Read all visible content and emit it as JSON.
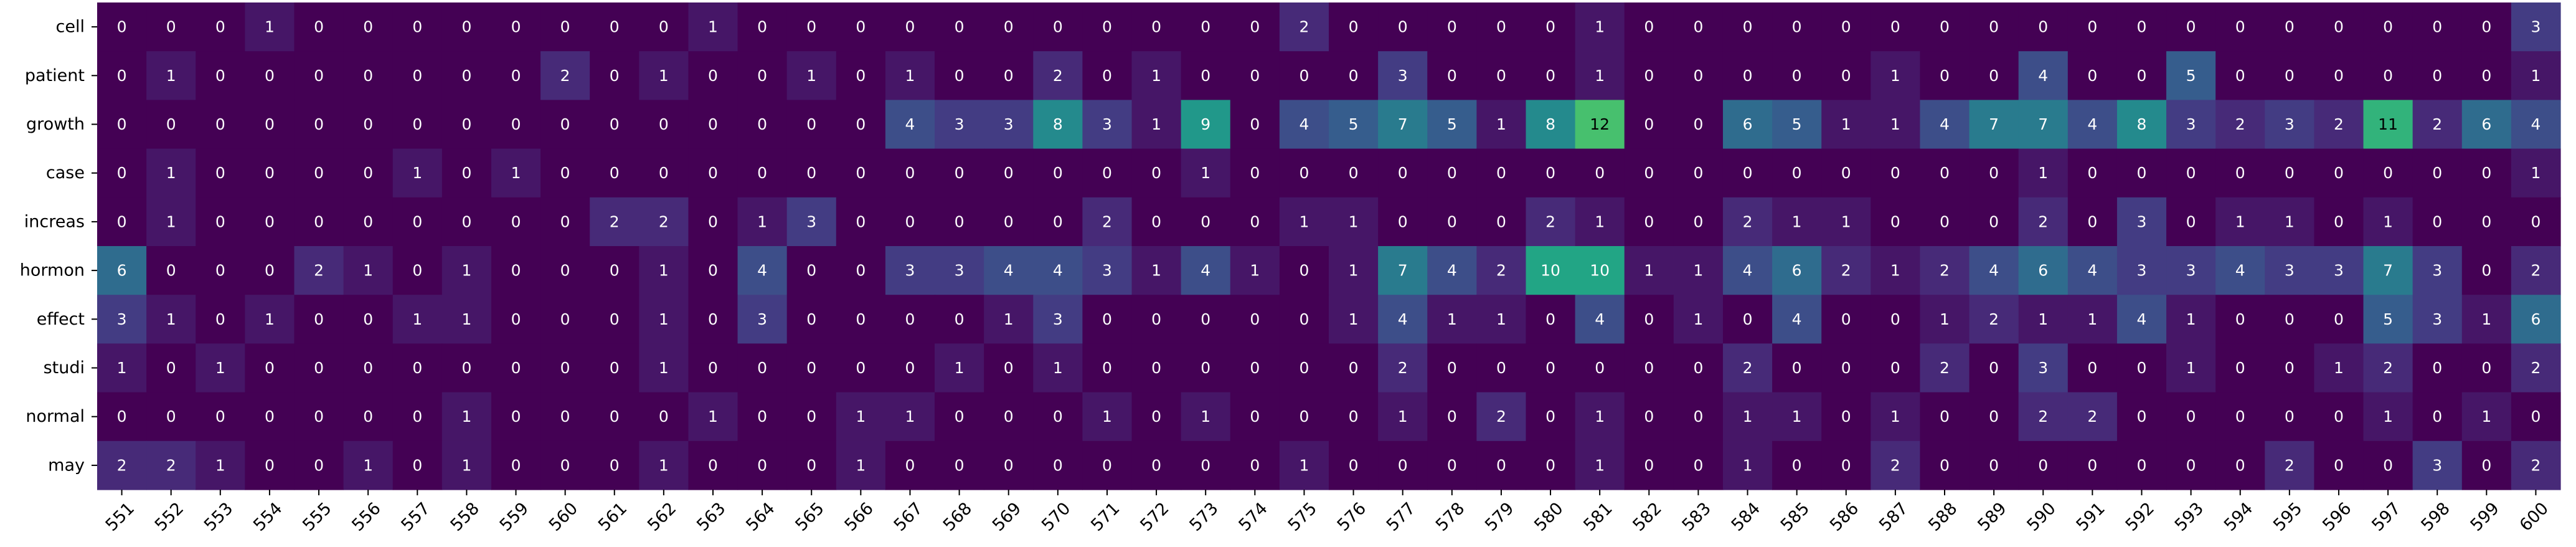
{
  "chart_data": {
    "type": "heatmap",
    "title": "",
    "xlabel": "",
    "ylabel": "",
    "colormap": "viridis",
    "vmin": 0,
    "vmax": 17,
    "grid": false,
    "rows": [
      "cell",
      "patient",
      "growth",
      "case",
      "increas",
      "hormon",
      "effect",
      "studi",
      "normal",
      "may"
    ],
    "columns": [
      "551",
      "552",
      "553",
      "554",
      "555",
      "556",
      "557",
      "558",
      "559",
      "560",
      "561",
      "562",
      "563",
      "564",
      "565",
      "566",
      "567",
      "568",
      "569",
      "570",
      "571",
      "572",
      "573",
      "574",
      "575",
      "576",
      "577",
      "578",
      "579",
      "580",
      "581",
      "582",
      "583",
      "584",
      "585",
      "586",
      "587",
      "588",
      "589",
      "590",
      "591",
      "592",
      "593",
      "594",
      "595",
      "596",
      "597",
      "598",
      "599",
      "600"
    ],
    "values": [
      [
        0,
        0,
        0,
        1,
        0,
        0,
        0,
        0,
        0,
        0,
        0,
        0,
        1,
        0,
        0,
        0,
        0,
        0,
        0,
        0,
        0,
        0,
        0,
        0,
        2,
        0,
        0,
        0,
        0,
        0,
        1,
        0,
        0,
        0,
        0,
        0,
        0,
        0,
        0,
        0,
        0,
        0,
        0,
        0,
        0,
        0,
        0,
        0,
        0,
        3
      ],
      [
        0,
        1,
        0,
        0,
        0,
        0,
        0,
        0,
        0,
        2,
        0,
        1,
        0,
        0,
        1,
        0,
        1,
        0,
        0,
        2,
        0,
        1,
        0,
        0,
        0,
        0,
        3,
        0,
        0,
        0,
        1,
        0,
        0,
        0,
        0,
        0,
        1,
        0,
        0,
        4,
        0,
        0,
        5,
        0,
        0,
        0,
        0,
        0,
        0,
        1
      ],
      [
        0,
        0,
        0,
        0,
        0,
        0,
        0,
        0,
        0,
        0,
        0,
        0,
        0,
        0,
        0,
        0,
        4,
        3,
        3,
        8,
        3,
        1,
        9,
        0,
        4,
        5,
        7,
        5,
        1,
        8,
        12,
        0,
        0,
        6,
        5,
        1,
        1,
        4,
        7,
        7,
        4,
        8,
        3,
        2,
        3,
        2,
        11,
        2,
        6,
        4
      ],
      [
        0,
        1,
        0,
        0,
        0,
        0,
        1,
        0,
        1,
        0,
        0,
        0,
        0,
        0,
        0,
        0,
        0,
        0,
        0,
        0,
        0,
        0,
        1,
        0,
        0,
        0,
        0,
        0,
        0,
        0,
        0,
        0,
        0,
        0,
        0,
        0,
        0,
        0,
        0,
        1,
        0,
        0,
        0,
        0,
        0,
        0,
        0,
        0,
        0,
        1
      ],
      [
        0,
        1,
        0,
        0,
        0,
        0,
        0,
        0,
        0,
        0,
        2,
        2,
        0,
        1,
        3,
        0,
        0,
        0,
        0,
        0,
        2,
        0,
        0,
        0,
        1,
        1,
        0,
        0,
        0,
        2,
        1,
        0,
        0,
        2,
        1,
        1,
        0,
        0,
        0,
        2,
        0,
        3,
        0,
        1,
        1,
        0,
        1,
        0,
        0,
        0
      ],
      [
        6,
        0,
        0,
        0,
        2,
        1,
        0,
        1,
        0,
        0,
        0,
        1,
        0,
        4,
        0,
        0,
        3,
        3,
        4,
        4,
        3,
        1,
        4,
        1,
        0,
        1,
        7,
        4,
        2,
        10,
        10,
        1,
        1,
        4,
        6,
        2,
        1,
        2,
        4,
        6,
        4,
        3,
        3,
        4,
        3,
        3,
        7,
        3,
        0,
        2
      ],
      [
        3,
        1,
        0,
        1,
        0,
        0,
        1,
        1,
        0,
        0,
        0,
        1,
        0,
        3,
        0,
        0,
        0,
        0,
        1,
        3,
        0,
        0,
        0,
        0,
        0,
        1,
        4,
        1,
        1,
        0,
        4,
        0,
        1,
        0,
        4,
        0,
        0,
        1,
        2,
        1,
        1,
        4,
        1,
        0,
        0,
        0,
        5,
        3,
        1,
        6
      ],
      [
        1,
        0,
        1,
        0,
        0,
        0,
        0,
        0,
        0,
        0,
        0,
        1,
        0,
        0,
        0,
        0,
        0,
        1,
        0,
        1,
        0,
        0,
        0,
        0,
        0,
        0,
        2,
        0,
        0,
        0,
        0,
        0,
        0,
        2,
        0,
        0,
        0,
        2,
        0,
        3,
        0,
        0,
        1,
        0,
        0,
        1,
        2,
        0,
        0,
        2
      ],
      [
        0,
        0,
        0,
        0,
        0,
        0,
        0,
        1,
        0,
        0,
        0,
        0,
        1,
        0,
        0,
        1,
        1,
        0,
        0,
        0,
        1,
        0,
        1,
        0,
        0,
        0,
        1,
        0,
        2,
        0,
        1,
        0,
        0,
        1,
        1,
        0,
        1,
        0,
        0,
        2,
        2,
        0,
        0,
        0,
        0,
        0,
        1,
        0,
        1,
        0
      ],
      [
        2,
        2,
        1,
        0,
        0,
        1,
        0,
        1,
        0,
        0,
        0,
        1,
        0,
        0,
        0,
        1,
        0,
        0,
        0,
        0,
        0,
        0,
        0,
        0,
        1,
        0,
        0,
        0,
        0,
        0,
        1,
        0,
        0,
        1,
        0,
        0,
        2,
        0,
        0,
        0,
        0,
        0,
        0,
        0,
        2,
        0,
        0,
        3,
        0,
        2
      ]
    ]
  }
}
